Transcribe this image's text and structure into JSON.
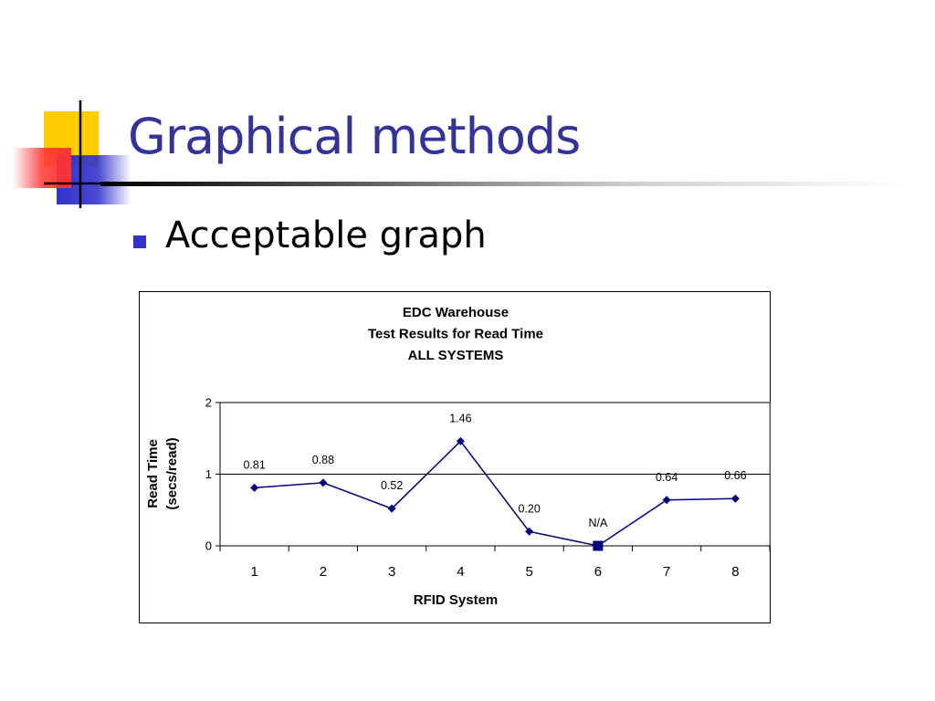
{
  "slide": {
    "title": "Graphical methods",
    "bullet": "Acceptable graph"
  },
  "colors": {
    "title": "#333399",
    "bullet": "#3333cc",
    "series": "#000080",
    "deco_yellow": "#ffcc00",
    "deco_blue": "#3333cc",
    "deco_red": "#ff3333"
  },
  "chart_data": {
    "type": "line",
    "title_lines": [
      "EDC Warehouse",
      "Test Results for Read Time",
      "ALL SYSTEMS"
    ],
    "xlabel": "RFID System",
    "ylabel_lines": [
      "Read Time",
      "(secs/read)"
    ],
    "categories": [
      "1",
      "2",
      "3",
      "4",
      "5",
      "6",
      "7",
      "8"
    ],
    "values": [
      0.81,
      0.88,
      0.52,
      1.46,
      0.2,
      0,
      0.64,
      0.66
    ],
    "data_labels": [
      "0.81",
      "0.88",
      "0.52",
      "1.46",
      "0.20",
      "N/A",
      "0.64",
      "0.66"
    ],
    "highlight_index": 5,
    "ylim": [
      0,
      2
    ],
    "yticks": [
      0,
      1,
      2
    ],
    "grid": "horizontal",
    "legend": "none"
  }
}
